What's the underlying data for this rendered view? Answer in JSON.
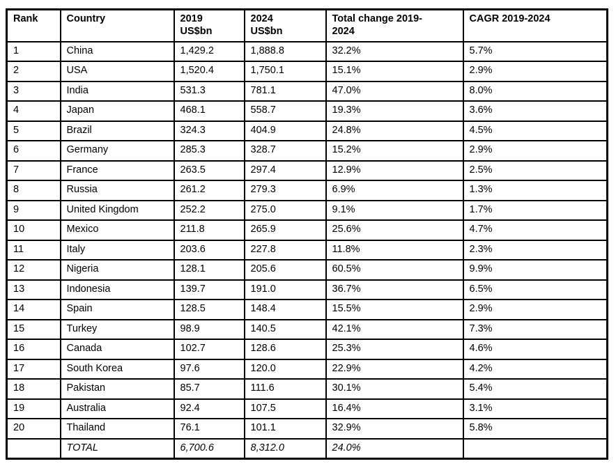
{
  "colors": {
    "background": "#ffffff",
    "border": "#000000",
    "text": "#000000"
  },
  "chart_data": {
    "type": "table",
    "column_keys": [
      "rank",
      "country",
      "y2019",
      "y2024",
      "total_change",
      "cagr"
    ],
    "columns": [
      "Rank",
      "Country",
      "2019\nUS$bn",
      "2024\nUS$bn",
      "Total change 2019-\n2024",
      "CAGR 2019-2024"
    ],
    "rows": [
      {
        "rank": "1",
        "country": "China",
        "y2019": "1,429.2",
        "y2024": "1,888.8",
        "total_change": "32.2%",
        "cagr": "5.7%"
      },
      {
        "rank": "2",
        "country": "USA",
        "y2019": "1,520.4",
        "y2024": "1,750.1",
        "total_change": "15.1%",
        "cagr": "2.9%"
      },
      {
        "rank": "3",
        "country": "India",
        "y2019": "531.3",
        "y2024": "781.1",
        "total_change": "47.0%",
        "cagr": "8.0%"
      },
      {
        "rank": "4",
        "country": "Japan",
        "y2019": "468.1",
        "y2024": "558.7",
        "total_change": "19.3%",
        "cagr": "3.6%"
      },
      {
        "rank": "5",
        "country": "Brazil",
        "y2019": "324.3",
        "y2024": "404.9",
        "total_change": "24.8%",
        "cagr": "4.5%"
      },
      {
        "rank": "6",
        "country": "Germany",
        "y2019": "285.3",
        "y2024": "328.7",
        "total_change": "15.2%",
        "cagr": "2.9%"
      },
      {
        "rank": "7",
        "country": "France",
        "y2019": "263.5",
        "y2024": "297.4",
        "total_change": "12.9%",
        "cagr": "2.5%"
      },
      {
        "rank": "8",
        "country": "Russia",
        "y2019": "261.2",
        "y2024": "279.3",
        "total_change": "6.9%",
        "cagr": "1.3%"
      },
      {
        "rank": "9",
        "country": "United Kingdom",
        "y2019": "252.2",
        "y2024": "275.0",
        "total_change": "9.1%",
        "cagr": "1.7%"
      },
      {
        "rank": "10",
        "country": "Mexico",
        "y2019": "211.8",
        "y2024": "265.9",
        "total_change": "25.6%",
        "cagr": "4.7%"
      },
      {
        "rank": "11",
        "country": "Italy",
        "y2019": "203.6",
        "y2024": "227.8",
        "total_change": "11.8%",
        "cagr": "2.3%"
      },
      {
        "rank": "12",
        "country": "Nigeria",
        "y2019": "128.1",
        "y2024": "205.6",
        "total_change": "60.5%",
        "cagr": "9.9%"
      },
      {
        "rank": "13",
        "country": "Indonesia",
        "y2019": "139.7",
        "y2024": "191.0",
        "total_change": "36.7%",
        "cagr": "6.5%"
      },
      {
        "rank": "14",
        "country": "Spain",
        "y2019": "128.5",
        "y2024": "148.4",
        "total_change": "15.5%",
        "cagr": "2.9%"
      },
      {
        "rank": "15",
        "country": "Turkey",
        "y2019": "98.9",
        "y2024": "140.5",
        "total_change": "42.1%",
        "cagr": "7.3%"
      },
      {
        "rank": "16",
        "country": "Canada",
        "y2019": "102.7",
        "y2024": "128.6",
        "total_change": "25.3%",
        "cagr": "4.6%"
      },
      {
        "rank": "17",
        "country": "South Korea",
        "y2019": "97.6",
        "y2024": "120.0",
        "total_change": "22.9%",
        "cagr": "4.2%"
      },
      {
        "rank": "18",
        "country": "Pakistan",
        "y2019": "85.7",
        "y2024": "111.6",
        "total_change": "30.1%",
        "cagr": "5.4%"
      },
      {
        "rank": "19",
        "country": "Australia",
        "y2019": "92.4",
        "y2024": "107.5",
        "total_change": "16.4%",
        "cagr": "3.1%"
      },
      {
        "rank": "20",
        "country": "Thailand",
        "y2019": "76.1",
        "y2024": "101.1",
        "total_change": "32.9%",
        "cagr": "5.8%"
      }
    ],
    "total_row": {
      "rank": "",
      "country": "TOTAL",
      "y2019": "6,700.6",
      "y2024": "8,312.0",
      "total_change": "24.0%",
      "cagr": ""
    }
  }
}
